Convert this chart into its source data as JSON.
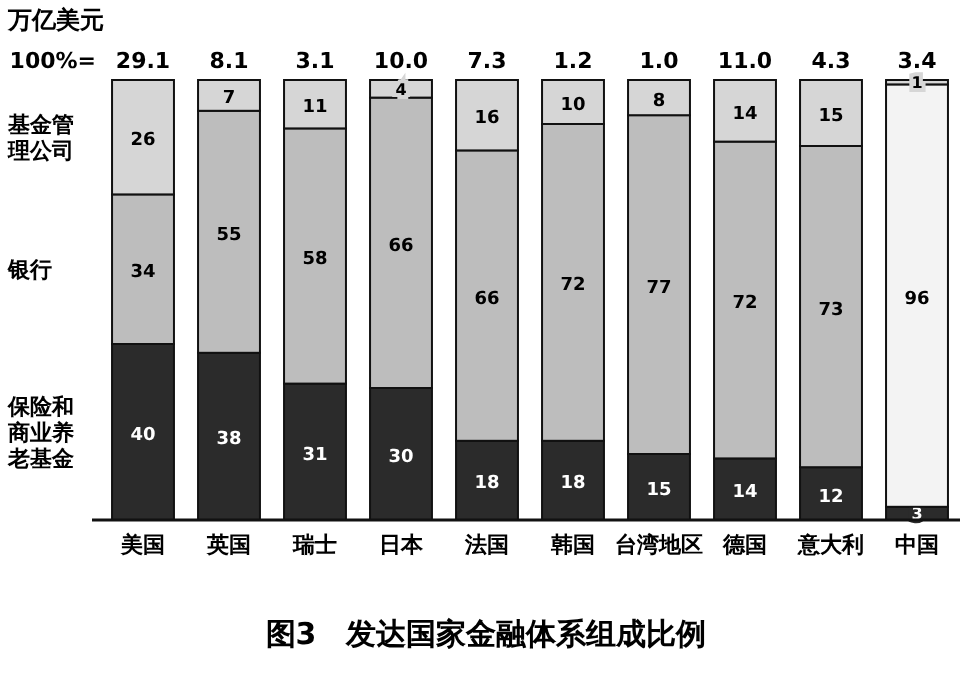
{
  "chart_data": {
    "type": "bar",
    "stacked": true,
    "title": "图3　发达国家金融体系组成比例",
    "annotations": [
      "万亿美元",
      "100%=",
      "29.1",
      "8.1",
      "3.1",
      "10.0",
      "7.3",
      "1.2",
      "1.0",
      "11.0",
      "4.3",
      "3.4"
    ],
    "categories": [
      "美国",
      "英国",
      "瑞士",
      "日本",
      "法国",
      "韩国",
      "台湾地区",
      "德国",
      "意大利",
      "中国"
    ],
    "ylim": [
      0,
      100
    ],
    "tick_labels": "x",
    "data_labels": true,
    "series": [
      {
        "name": "保险和商业养老基金",
        "color": "#2b2b2b",
        "values": [
          40,
          38,
          31,
          30,
          18,
          18,
          15,
          14,
          12,
          3
        ]
      },
      {
        "name": "银行",
        "colors": [
          "#bdbdbd",
          "#bdbdbd",
          "#bdbdbd",
          "#bdbdbd",
          "#bdbdbd",
          "#bdbdbd",
          "#bdbdbd",
          "#bdbdbd",
          "#bdbdbd",
          "#f3f3f3"
        ],
        "values": [
          34,
          55,
          58,
          66,
          66,
          72,
          77,
          72,
          73,
          96
        ]
      },
      {
        "name": "基金管理公司",
        "color": "#d6d6d6",
        "values": [
          26,
          7,
          11,
          4,
          16,
          10,
          8,
          14,
          15,
          1
        ]
      }
    ]
  }
}
